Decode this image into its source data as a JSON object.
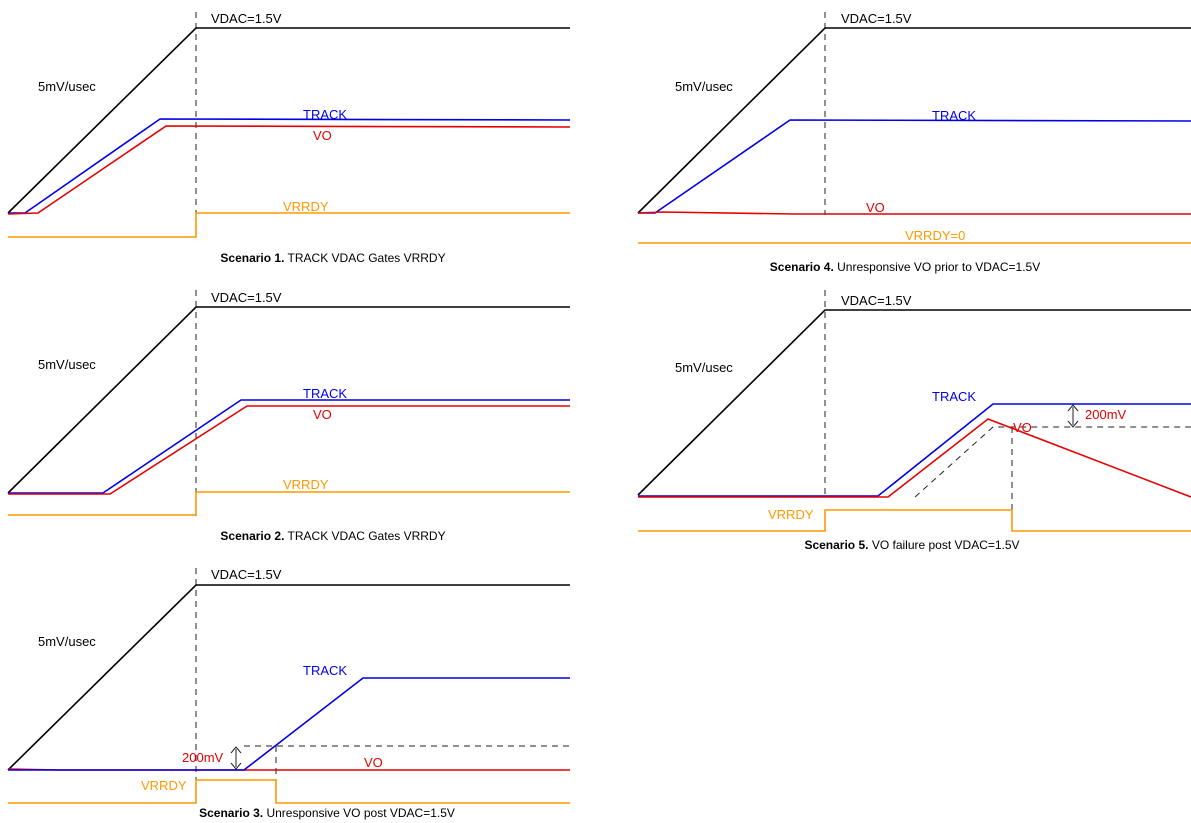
{
  "colors": {
    "vdac": "#000000",
    "track": "#0000e6",
    "vo": "#e60000",
    "vrrdy": "#ff9900",
    "text": "#000000"
  },
  "labels": {
    "vdac": "VDAC=1.5V",
    "slew": "5mV/usec",
    "track": "TRACK",
    "vo": "VO",
    "vrrdy": "VRRDY",
    "vrrdy_zero": "VRRDY=0",
    "delta": "200mV"
  },
  "scenarios": [
    {
      "number": "Scenario 1.",
      "title": "TRACK VDAC Gates VRRDY"
    },
    {
      "number": "Scenario 2.",
      "title": "TRACK VDAC Gates VRRDY"
    },
    {
      "number": "Scenario 3.",
      "title": "Unresponsive VO post VDAC=1.5V"
    },
    {
      "number": "Scenario 4.",
      "title": "Unresponsive VO prior to VDAC=1.5V"
    },
    {
      "number": "Scenario 5.",
      "title": "VO failure post VDAC=1.5V"
    }
  ]
}
